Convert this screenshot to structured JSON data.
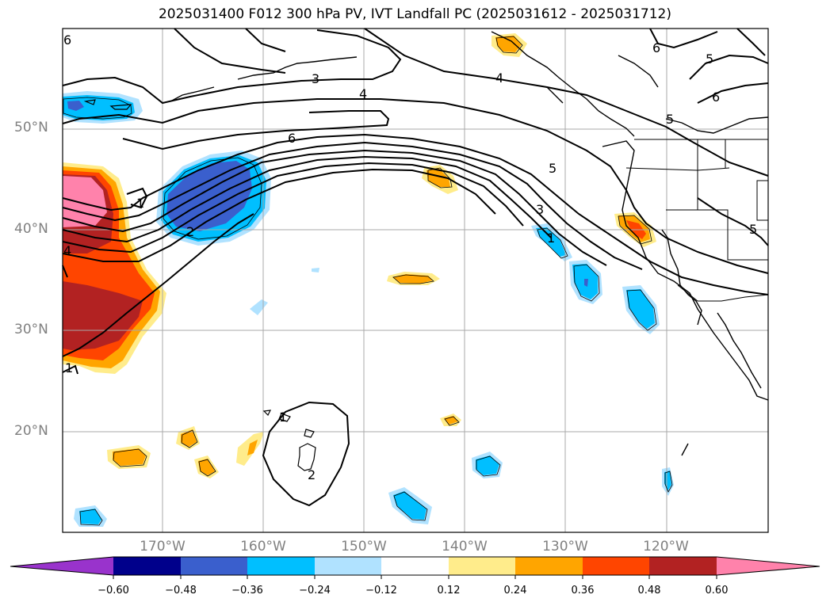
{
  "title": "2025031400 F012 300 hPa PV, IVT Landfall PC (2025031612 - 2025031712)",
  "map": {
    "lon_range": [
      180,
      110
    ],
    "lat_range": [
      10,
      60
    ],
    "lat_ticks": [
      "50°N",
      "40°N",
      "30°N",
      "20°N"
    ],
    "lon_ticks": [
      "170°W",
      "160°W",
      "150°W",
      "140°W",
      "130°W",
      "120°W"
    ],
    "grid": true
  },
  "colorbar": {
    "orientation": "horizontal",
    "extend": "both",
    "tick_labels": [
      "−0.60",
      "−0.48",
      "−0.36",
      "−0.24",
      "−0.12",
      "0.12",
      "0.24",
      "0.36",
      "0.48",
      "0.60"
    ],
    "colors": [
      "#9933cc",
      "#00008b",
      "#3a5fcd",
      "#00bfff",
      "#b0e2ff",
      "#ffffff",
      "#ffec8b",
      "#ffa500",
      "#ff4500",
      "#b22222",
      "#ff82ab"
    ]
  },
  "contour_labels": [
    "3",
    "4",
    "6",
    "6",
    "5",
    "5",
    "6",
    "4",
    "6",
    "5",
    "3",
    "1",
    "2",
    "1",
    "5",
    "1",
    "2",
    "1",
    "4"
  ]
}
